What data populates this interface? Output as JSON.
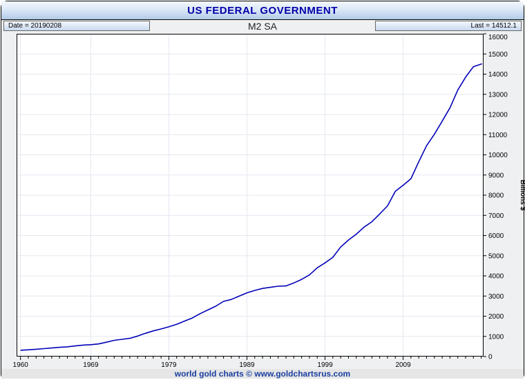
{
  "window": {
    "title": "US FEDERAL GOVERNMENT",
    "footer_text": "world gold charts © www.goldchartsrus.com"
  },
  "header": {
    "date_label": "Date = 20190208",
    "subtitle": "M2 SA",
    "last_label": "Last = 14512.1"
  },
  "colors": {
    "line": "#0000b8",
    "title_text": "#0000a8",
    "footer_text": "#1a3fa0",
    "grid": "#e3e7ef"
  },
  "chart_data": {
    "type": "line",
    "title": "M2 SA",
    "xlabel": "",
    "ylabel": "Billions $",
    "xlim": [
      1959.5,
      2019.3
    ],
    "ylim": [
      0,
      16000
    ],
    "y_tick_step": 1000,
    "x_ticks": [
      1960,
      1969,
      1979,
      1989,
      1999,
      2009
    ],
    "grid": true,
    "line_color": "#0000b8",
    "last_value": 14512.1,
    "series": [
      {
        "name": "M2 SA",
        "x": [
          1960,
          1961,
          1962,
          1963,
          1964,
          1965,
          1966,
          1967,
          1968,
          1969,
          1970,
          1971,
          1972,
          1973,
          1974,
          1975,
          1976,
          1977,
          1978,
          1979,
          1980,
          1981,
          1982,
          1983,
          1984,
          1985,
          1986,
          1987,
          1988,
          1989,
          1990,
          1991,
          1992,
          1993,
          1994,
          1995,
          1996,
          1997,
          1998,
          1999,
          2000,
          2001,
          2002,
          2003,
          2004,
          2005,
          2006,
          2007,
          2008,
          2009,
          2010,
          2011,
          2012,
          2013,
          2014,
          2015,
          2016,
          2017,
          2018,
          2019.1
        ],
        "y": [
          312,
          336,
          363,
          393,
          425,
          459,
          481,
          525,
          567,
          588,
          627,
          710,
          803,
          856,
          902,
          1016,
          1152,
          1271,
          1366,
          1474,
          1600,
          1756,
          1911,
          2127,
          2311,
          2497,
          2734,
          2832,
          2995,
          3159,
          3278,
          3379,
          3434,
          3487,
          3502,
          3649,
          3824,
          4046,
          4401,
          4643,
          4921,
          5430,
          5774,
          6066,
          6417,
          6680,
          7070,
          7471,
          8190,
          8493,
          8816,
          9653,
          10450,
          11020,
          11670,
          12330,
          13210,
          13850,
          14370,
          14512.1
        ]
      }
    ]
  }
}
